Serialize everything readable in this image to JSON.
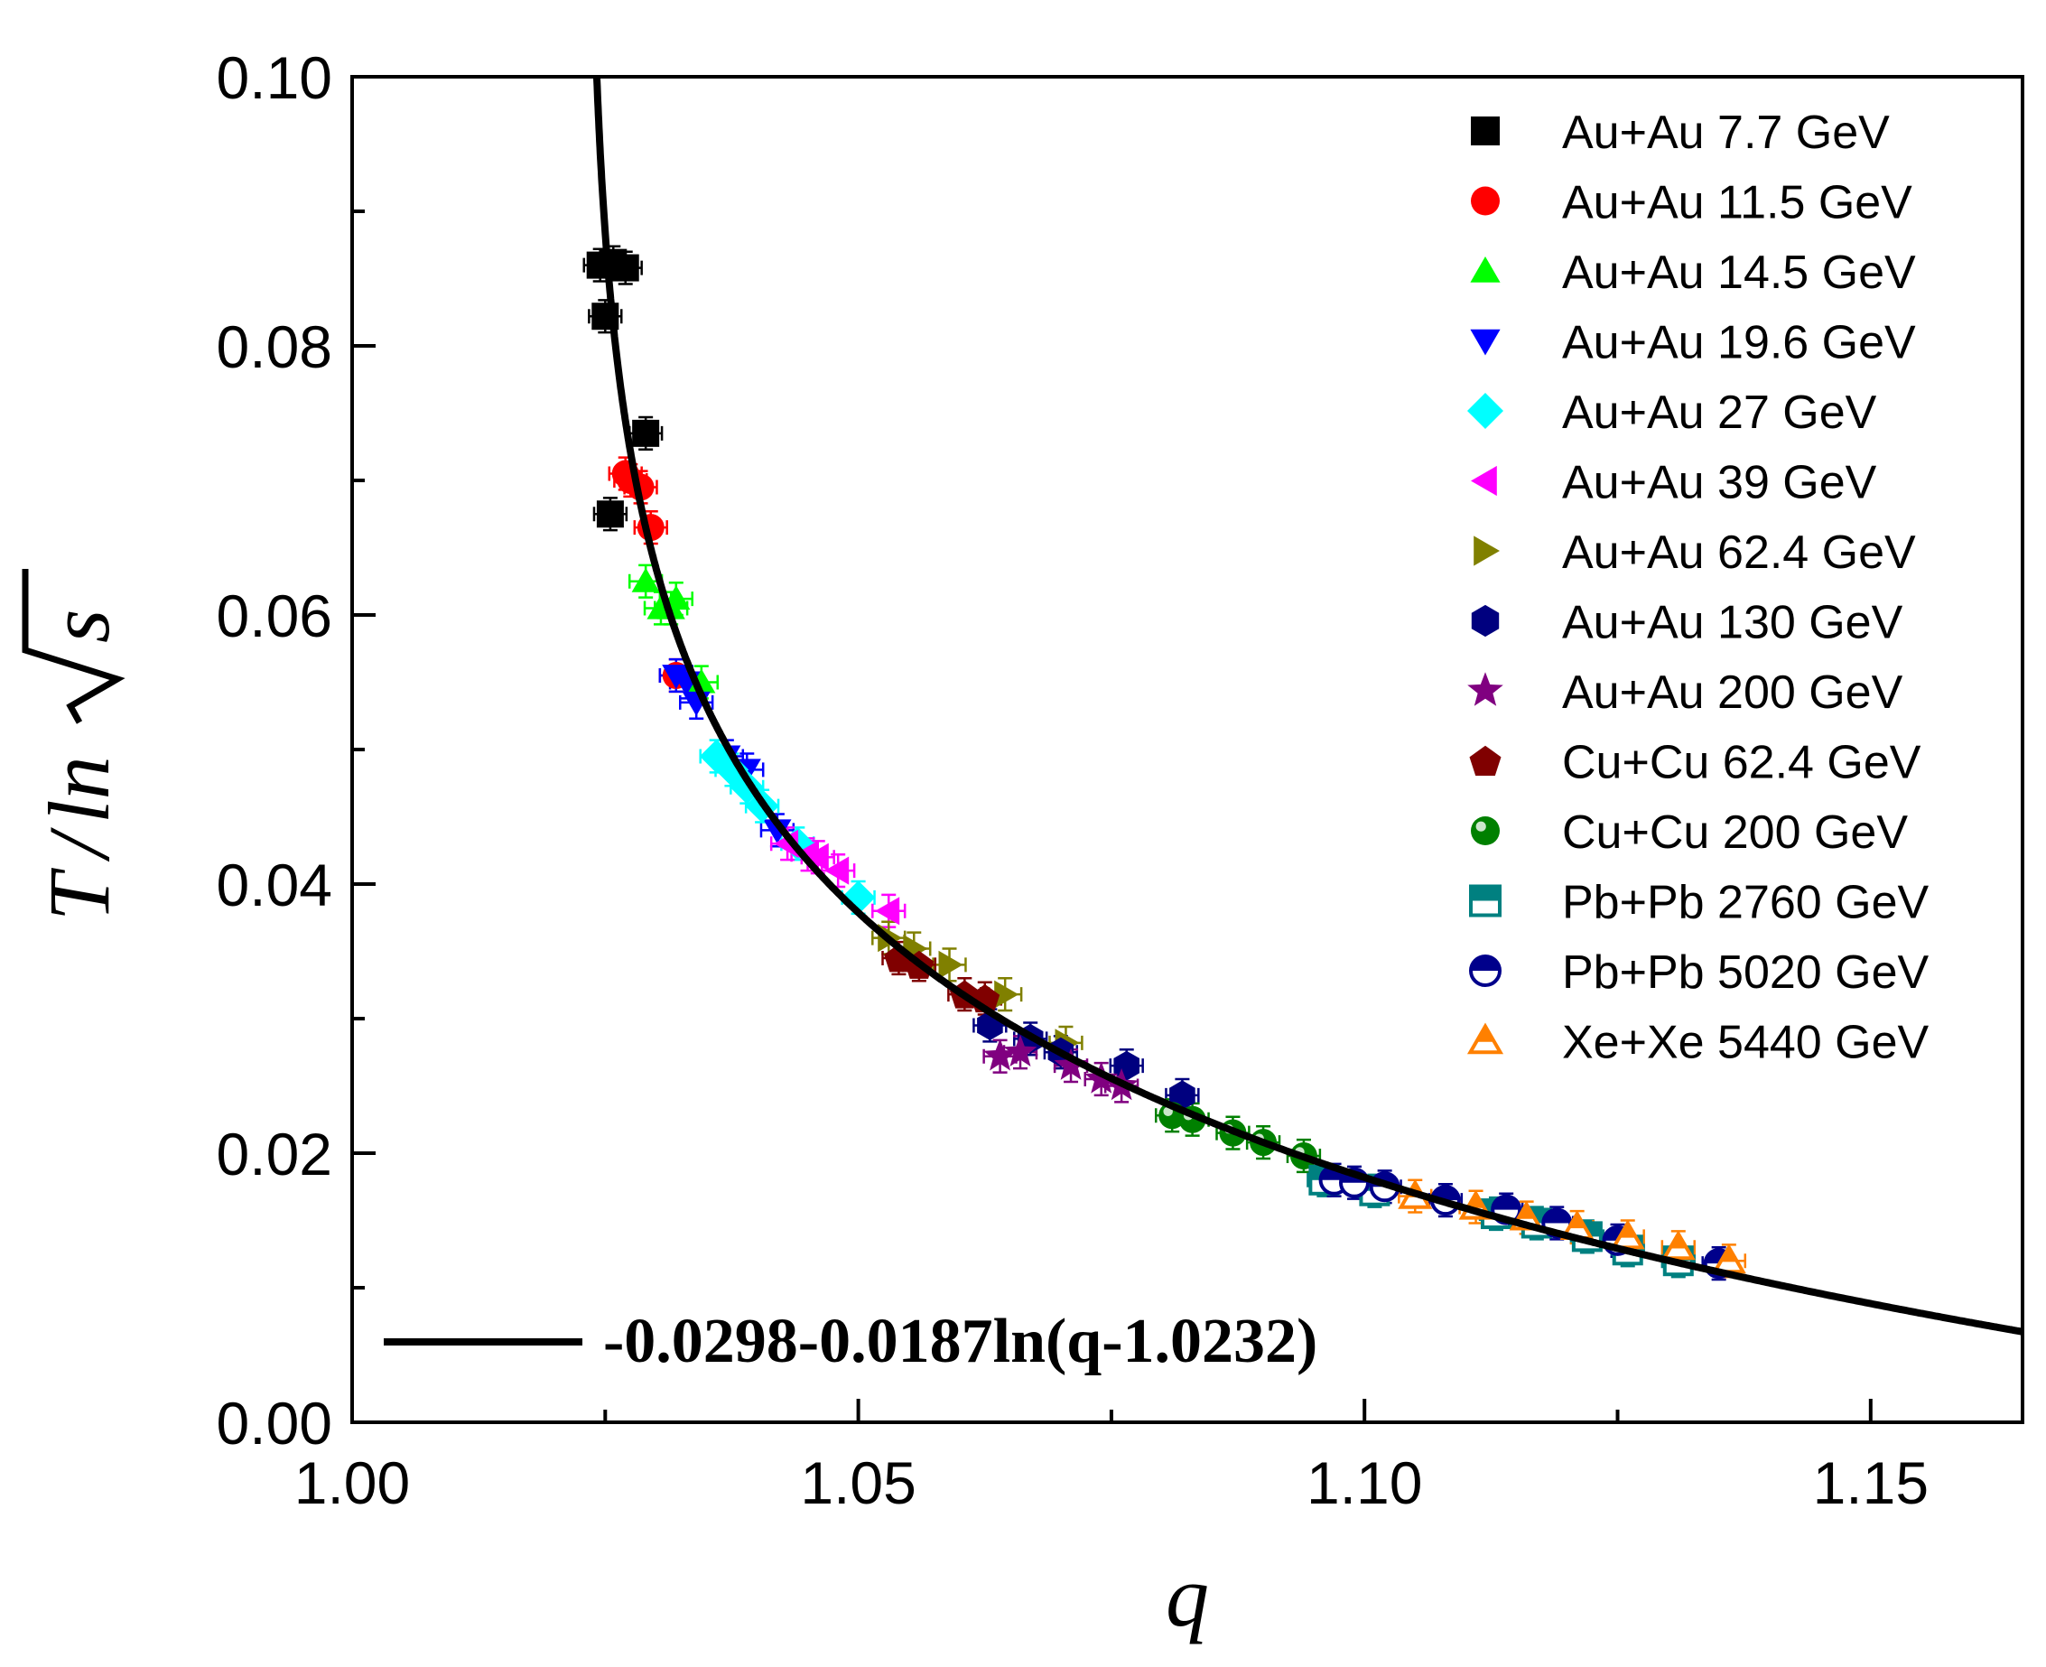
{
  "chart_data": {
    "type": "scatter",
    "xlabel": "q",
    "ylabel_parts": [
      "T",
      "/",
      "ln",
      "s"
    ],
    "xlim": [
      1.0,
      1.165
    ],
    "ylim": [
      0.0,
      0.1
    ],
    "x_ticks": [
      "1.00",
      "1.05",
      "1.10",
      "1.15"
    ],
    "y_ticks": [
      "0.00",
      "0.02",
      "0.04",
      "0.06",
      "0.08",
      "0.10"
    ],
    "fit": {
      "label": "-0.0298-0.0187ln(q-1.0232)",
      "a": -0.0298,
      "b": -0.0187,
      "c": 1.0232,
      "color": "#000000"
    },
    "series": [
      {
        "name": "Au+Au 7.7 GeV",
        "marker": "square",
        "color": "#000000",
        "points": [
          [
            1.0245,
            0.086
          ],
          [
            1.0258,
            0.0862
          ],
          [
            1.027,
            0.0858
          ],
          [
            1.025,
            0.0822
          ],
          [
            1.029,
            0.0735
          ],
          [
            1.0255,
            0.0675
          ]
        ]
      },
      {
        "name": "Au+Au 11.5 GeV",
        "marker": "circle",
        "color": "#ff0000",
        "points": [
          [
            1.027,
            0.0705
          ],
          [
            1.0285,
            0.0695
          ],
          [
            1.0275,
            0.07
          ],
          [
            1.0295,
            0.0665
          ],
          [
            1.032,
            0.0555
          ]
        ]
      },
      {
        "name": "Au+Au 14.5 GeV",
        "marker": "triangle-up",
        "color": "#00ff00",
        "points": [
          [
            1.029,
            0.0625
          ],
          [
            1.0305,
            0.0605
          ],
          [
            1.032,
            0.0612
          ],
          [
            1.0345,
            0.055
          ],
          [
            1.0315,
            0.0605
          ]
        ]
      },
      {
        "name": "Au+Au 19.6 GeV",
        "marker": "triangle-down",
        "color": "#0000ff",
        "points": [
          [
            1.032,
            0.0555
          ],
          [
            1.033,
            0.055
          ],
          [
            1.034,
            0.0535
          ],
          [
            1.037,
            0.0495
          ],
          [
            1.039,
            0.0485
          ],
          [
            1.042,
            0.044
          ]
        ]
      },
      {
        "name": "Au+Au 27 GeV",
        "marker": "diamond",
        "color": "#00ffff",
        "points": [
          [
            1.036,
            0.0495
          ],
          [
            1.0375,
            0.0485
          ],
          [
            1.039,
            0.0472
          ],
          [
            1.0405,
            0.0458
          ],
          [
            1.044,
            0.043
          ],
          [
            1.05,
            0.039
          ]
        ]
      },
      {
        "name": "Au+Au 39 GeV",
        "marker": "triangle-left",
        "color": "#ff00ff",
        "points": [
          [
            1.043,
            0.043
          ],
          [
            1.045,
            0.0422
          ],
          [
            1.048,
            0.041
          ],
          [
            1.053,
            0.038
          ],
          [
            1.046,
            0.042
          ]
        ]
      },
      {
        "name": "Au+Au 62.4 GeV",
        "marker": "triangle-right",
        "color": "#808000",
        "points": [
          [
            1.053,
            0.036
          ],
          [
            1.0555,
            0.0352
          ],
          [
            1.059,
            0.034
          ],
          [
            1.0645,
            0.0318
          ],
          [
            1.0705,
            0.0282
          ]
        ]
      },
      {
        "name": "Au+Au 130 GeV",
        "marker": "hexagon",
        "color": "#00007f",
        "points": [
          [
            1.063,
            0.0295
          ],
          [
            1.067,
            0.0285
          ],
          [
            1.07,
            0.0275
          ],
          [
            1.0765,
            0.0265
          ],
          [
            1.082,
            0.0243
          ]
        ]
      },
      {
        "name": "Au+Au 200 GeV",
        "marker": "star",
        "color": "#800080",
        "points": [
          [
            1.064,
            0.0272
          ],
          [
            1.066,
            0.0275
          ],
          [
            1.071,
            0.0265
          ],
          [
            1.074,
            0.0255
          ],
          [
            1.076,
            0.025
          ]
        ]
      },
      {
        "name": "Cu+Cu 62.4 GeV",
        "marker": "pentagon",
        "color": "#800000",
        "points": [
          [
            1.054,
            0.0345
          ],
          [
            1.056,
            0.034
          ],
          [
            1.0605,
            0.0318
          ],
          [
            1.0625,
            0.0315
          ]
        ]
      },
      {
        "name": "Cu+Cu 200 GeV",
        "marker": "circle-shaded",
        "color": "#008000",
        "points": [
          [
            1.081,
            0.0228
          ],
          [
            1.083,
            0.0225
          ],
          [
            1.087,
            0.0215
          ],
          [
            1.09,
            0.0208
          ],
          [
            1.094,
            0.0198
          ]
        ]
      },
      {
        "name": "Pb+Pb 2760 GeV",
        "marker": "square-half",
        "color": "#008080",
        "points": [
          [
            1.096,
            0.018
          ],
          [
            1.101,
            0.0172
          ],
          [
            1.113,
            0.0155
          ],
          [
            1.117,
            0.0148
          ],
          [
            1.122,
            0.0138
          ],
          [
            1.126,
            0.0128
          ],
          [
            1.131,
            0.012
          ]
        ]
      },
      {
        "name": "Pb+Pb 5020 GeV",
        "marker": "circle-half",
        "color": "#00008b",
        "points": [
          [
            1.097,
            0.018
          ],
          [
            1.099,
            0.0178
          ],
          [
            1.102,
            0.0175
          ],
          [
            1.108,
            0.0165
          ],
          [
            1.114,
            0.0158
          ],
          [
            1.119,
            0.0148
          ],
          [
            1.125,
            0.0135
          ],
          [
            1.135,
            0.0118
          ]
        ]
      },
      {
        "name": "Xe+Xe 5440 GeV",
        "marker": "triangle-up-half",
        "color": "#ff8000",
        "points": [
          [
            1.105,
            0.0168
          ],
          [
            1.111,
            0.016
          ],
          [
            1.116,
            0.0152
          ],
          [
            1.121,
            0.0145
          ],
          [
            1.126,
            0.0138
          ],
          [
            1.131,
            0.013
          ],
          [
            1.136,
            0.012
          ]
        ]
      }
    ]
  }
}
